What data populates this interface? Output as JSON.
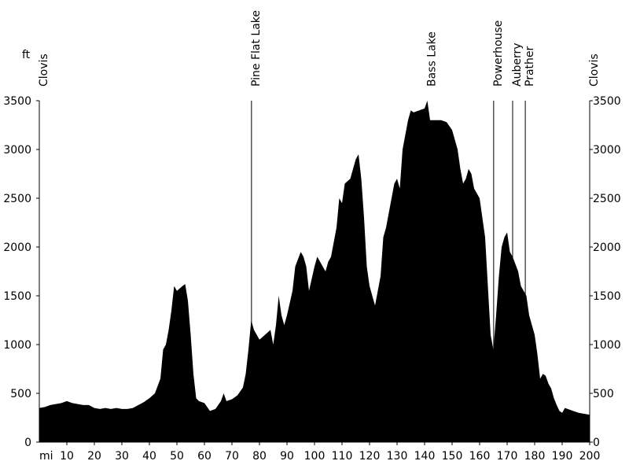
{
  "chart_data": {
    "type": "area",
    "y_label": "ft",
    "x_label": "mi",
    "color": "#000000",
    "x": [
      0,
      2,
      4,
      6,
      8,
      10,
      12,
      14,
      16,
      18,
      20,
      22,
      24,
      26,
      28,
      30,
      32,
      34,
      36,
      38,
      40,
      42,
      44,
      45,
      46,
      47,
      48,
      49,
      50,
      52,
      53,
      54,
      55,
      56,
      57,
      58,
      60,
      62,
      64,
      66,
      67,
      68,
      70,
      72,
      74,
      75,
      76,
      77,
      78,
      80,
      82,
      84,
      85,
      86,
      87,
      88,
      89,
      90,
      92,
      93,
      95,
      96,
      97,
      98,
      100,
      101,
      102,
      104,
      105,
      106,
      108,
      109,
      110,
      111,
      113,
      114,
      115,
      116,
      117,
      118,
      119,
      120,
      122,
      124,
      125,
      126,
      127,
      128,
      129,
      130,
      131,
      132,
      133,
      134,
      135,
      136,
      138,
      140,
      141,
      142,
      144,
      146,
      148,
      150,
      152,
      153,
      154,
      155,
      156,
      157,
      158,
      160,
      162,
      163,
      164,
      165,
      166,
      167,
      168,
      169,
      170,
      171,
      172,
      174,
      175,
      176,
      177,
      178,
      180,
      181,
      182,
      183,
      184,
      185,
      186,
      187,
      188,
      189,
      190,
      191,
      192,
      194,
      196,
      198,
      200
    ],
    "y": [
      350,
      360,
      380,
      390,
      400,
      420,
      400,
      390,
      380,
      380,
      350,
      340,
      350,
      340,
      350,
      340,
      340,
      350,
      380,
      410,
      450,
      500,
      650,
      950,
      1000,
      1150,
      1350,
      1600,
      1550,
      1600,
      1620,
      1450,
      1100,
      700,
      450,
      420,
      400,
      320,
      340,
      420,
      500,
      420,
      440,
      480,
      560,
      700,
      950,
      1250,
      1150,
      1050,
      1100,
      1150,
      1000,
      1200,
      1500,
      1300,
      1200,
      1300,
      1550,
      1800,
      1950,
      1900,
      1800,
      1550,
      1800,
      1900,
      1850,
      1750,
      1850,
      1900,
      2200,
      2500,
      2450,
      2650,
      2700,
      2800,
      2900,
      2950,
      2700,
      2300,
      1800,
      1600,
      1400,
      1700,
      2100,
      2200,
      2350,
      2500,
      2650,
      2700,
      2600,
      3000,
      3150,
      3300,
      3400,
      3380,
      3400,
      3420,
      3500,
      3300,
      3300,
      3300,
      3280,
      3200,
      3000,
      2800,
      2650,
      2700,
      2800,
      2750,
      2600,
      2500,
      2100,
      1600,
      1100,
      950,
      1300,
      1700,
      2000,
      2100,
      2150,
      1950,
      1900,
      1750,
      1600,
      1550,
      1500,
      1300,
      1100,
      900,
      650,
      700,
      680,
      600,
      550,
      450,
      380,
      320,
      300,
      350,
      340,
      320,
      300,
      290,
      280
    ],
    "xlim": [
      0,
      200
    ],
    "ylim": [
      0,
      3500
    ],
    "xticks": [
      10,
      20,
      30,
      40,
      50,
      60,
      70,
      80,
      90,
      100,
      110,
      120,
      130,
      140,
      150,
      160,
      170,
      180,
      190,
      200
    ],
    "yticks": [
      0,
      500,
      1000,
      1500,
      2000,
      2500,
      3000,
      3500
    ],
    "markers": [
      {
        "label": "Clovis",
        "x": 0,
        "line": false
      },
      {
        "label": "Pine Flat Lake",
        "x": 77.1,
        "line": true
      },
      {
        "label": "Bass Lake",
        "x": 141,
        "line": false
      },
      {
        "label": "Powerhouse",
        "x": 165.1,
        "line": true
      },
      {
        "label": "Auberry",
        "x": 172,
        "line": true
      },
      {
        "label": "Prather",
        "x": 176.6,
        "line": true
      },
      {
        "label": "Clovis",
        "x": 200,
        "line": false
      }
    ]
  }
}
